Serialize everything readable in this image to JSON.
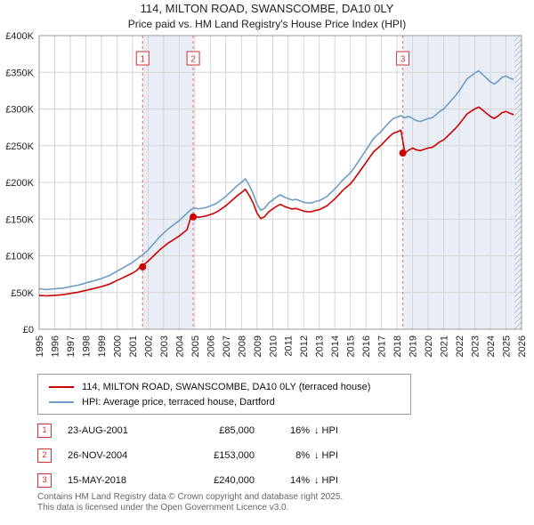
{
  "chart_data": {
    "type": "line",
    "title": "114, MILTON ROAD, SWANSCOMBE, DA10 0LY",
    "subtitle": "Price paid vs. HM Land Registry's House Price Index (HPI)",
    "x_range": [
      1995,
      2026
    ],
    "y_range": [
      0,
      400
    ],
    "y_unit_note": "values in thousands of GBP",
    "x_start": 1995,
    "x_step": 0.25,
    "grid": true,
    "legend_position": "bottom",
    "x_tick_years": [
      1995,
      1996,
      1997,
      1998,
      1999,
      2000,
      2001,
      2002,
      2003,
      2004,
      2005,
      2006,
      2007,
      2008,
      2009,
      2010,
      2011,
      2012,
      2013,
      2014,
      2015,
      2016,
      2017,
      2018,
      2019,
      2020,
      2021,
      2022,
      2023,
      2024,
      2025,
      2026
    ],
    "y_ticks": [
      {
        "v": 0,
        "label": "£0"
      },
      {
        "v": 50,
        "label": "£50K"
      },
      {
        "v": 100,
        "label": "£100K"
      },
      {
        "v": 150,
        "label": "£150K"
      },
      {
        "v": 200,
        "label": "£200K"
      },
      {
        "v": 250,
        "label": "£250K"
      },
      {
        "v": 300,
        "label": "£300K"
      },
      {
        "v": 350,
        "label": "£350K"
      },
      {
        "v": 400,
        "label": "£400K"
      }
    ],
    "series": [
      {
        "name": "114, MILTON ROAD, SWANSCOMBE, DA10 0LY (terraced house)",
        "color": "#cc0000",
        "values": [
          46,
          45.8,
          45.4,
          45.8,
          46.2,
          46.6,
          47,
          47.9,
          48.7,
          49.6,
          50.4,
          51.7,
          52.9,
          54.2,
          55.4,
          56.7,
          58,
          59.6,
          61.3,
          63.8,
          66.4,
          68.9,
          71.4,
          73.9,
          76.4,
          79.8,
          85,
          88.4,
          92.7,
          97.8,
          103,
          108.1,
          112.4,
          116.7,
          120.1,
          123.6,
          127,
          131.3,
          135.6,
          153,
          153.5,
          152.5,
          153.5,
          154.4,
          156.2,
          158.1,
          160.9,
          164.6,
          168.3,
          173,
          177.6,
          182.3,
          186,
          190.7,
          182.3,
          172.1,
          158.1,
          150.7,
          153.5,
          160,
          163.7,
          167.4,
          170.2,
          167.4,
          165.5,
          163.7,
          164.6,
          162.8,
          160.9,
          160,
          160,
          161.8,
          162.8,
          165.5,
          168.3,
          173,
          177.6,
          183.2,
          188.8,
          193.4,
          198.1,
          204.6,
          212,
          219.5,
          226.9,
          234.4,
          241.8,
          246.5,
          251.1,
          256.7,
          262.3,
          266.9,
          268.8,
          271,
          240,
          244,
          246.8,
          244.2,
          243.4,
          245.1,
          246.8,
          247.7,
          251.1,
          255.4,
          258,
          263.2,
          268.3,
          273.5,
          279.5,
          286.4,
          293.3,
          296.7,
          300.1,
          302.7,
          298.4,
          294.1,
          289.8,
          287.2,
          290.7,
          295,
          296.7,
          294.1,
          292.4
        ]
      },
      {
        "name": "HPI: Average price, terraced house, Dartford",
        "color": "#6d9dc5",
        "values": [
          55,
          54.5,
          54,
          54.5,
          55,
          55.5,
          56,
          57,
          58,
          59,
          60,
          61.5,
          63,
          64.5,
          66,
          67.5,
          69,
          71,
          73,
          76,
          79,
          82,
          85,
          88,
          91,
          95,
          99,
          103,
          108,
          114,
          120,
          126,
          131,
          136,
          140,
          144,
          148,
          153,
          158,
          163,
          165,
          164,
          165,
          166,
          168,
          170,
          173,
          177,
          181,
          186,
          191,
          196,
          200,
          205,
          196,
          185,
          170,
          162,
          165,
          172,
          176,
          180,
          183,
          180,
          178,
          176,
          177,
          175,
          173,
          172,
          172,
          174,
          175,
          178,
          181,
          186,
          191,
          197,
          203,
          208,
          213,
          220,
          228,
          236,
          244,
          252,
          260,
          265,
          270,
          276,
          282,
          287,
          289,
          291,
          288,
          290,
          287,
          284,
          283,
          285,
          287,
          288,
          292,
          297,
          300,
          306,
          312,
          318,
          325,
          333,
          341,
          345,
          349,
          352,
          347,
          342,
          337,
          334,
          338,
          343,
          345,
          342,
          340
        ]
      }
    ],
    "sales": [
      {
        "n": "1",
        "x": 2001.65,
        "y": 85,
        "date": "23-AUG-2001",
        "price": "£85,000",
        "pct": "16%",
        "rel": "↓ HPI"
      },
      {
        "n": "2",
        "x": 2004.9,
        "y": 153,
        "date": "26-NOV-2004",
        "price": "£153,000",
        "pct": "8%",
        "rel": "↓ HPI"
      },
      {
        "n": "3",
        "x": 2018.37,
        "y": 240,
        "date": "15-MAY-2018",
        "price": "£240,000",
        "pct": "14%",
        "rel": "↓ HPI"
      }
    ],
    "bands": [
      [
        2001.65,
        2004.9
      ],
      [
        2018.37,
        2026
      ]
    ],
    "hatch": [
      2025.55,
      2026
    ],
    "colors": {
      "band": "#e9eef6",
      "sale_line": "#e06666",
      "grid": "#d4d4d4",
      "border": "#999999",
      "marker_red": "#cc3333"
    }
  },
  "footer": {
    "line1": "Contains HM Land Registry data © Crown copyright and database right 2025.",
    "line2": "This data is licensed under the Open Government Licence v3.0."
  }
}
